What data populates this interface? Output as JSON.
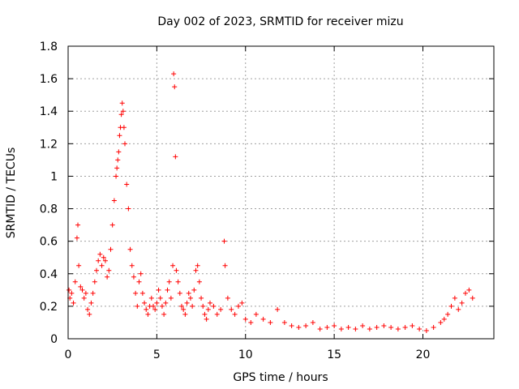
{
  "chart_data": {
    "type": "scatter",
    "title": "Day 002 of 2023, SRMTID for receiver mizu",
    "xlabel": "GPS time / hours",
    "ylabel": "SRMTID / TECUs",
    "xlim": [
      0,
      24
    ],
    "ylim": [
      0,
      1.8
    ],
    "xticks": [
      0,
      5,
      10,
      15,
      20
    ],
    "xtick_labels": [
      "0",
      "5",
      "10",
      "15",
      "20"
    ],
    "yticks": [
      0,
      0.2,
      0.4,
      0.6,
      0.8,
      1,
      1.2,
      1.4,
      1.6,
      1.8
    ],
    "ytick_labels": [
      "0",
      "0.2",
      "0.4",
      "0.6",
      "0.8",
      "1",
      "1.2",
      "1.4",
      "1.6",
      "1.8"
    ],
    "grid": true,
    "marker": "+",
    "color": "#ff0000",
    "series": [
      {
        "name": "SRMTID",
        "x": [
          0.05,
          0.1,
          0.2,
          0.3,
          0.4,
          0.5,
          0.55,
          0.6,
          0.7,
          0.8,
          0.9,
          1.0,
          1.1,
          1.2,
          1.3,
          1.4,
          1.5,
          1.6,
          1.7,
          1.8,
          1.9,
          2.0,
          2.1,
          2.2,
          2.3,
          2.4,
          2.5,
          2.6,
          2.7,
          2.75,
          2.8,
          2.85,
          2.9,
          2.95,
          3.0,
          3.05,
          3.1,
          3.15,
          3.2,
          3.3,
          3.4,
          3.5,
          3.6,
          3.7,
          3.8,
          3.9,
          4.0,
          4.1,
          4.2,
          4.3,
          4.4,
          4.5,
          4.6,
          4.7,
          4.8,
          4.9,
          5.0,
          5.1,
          5.2,
          5.3,
          5.4,
          5.5,
          5.6,
          5.7,
          5.8,
          5.9,
          5.95,
          6.0,
          6.05,
          6.1,
          6.2,
          6.3,
          6.4,
          6.5,
          6.6,
          6.7,
          6.8,
          6.9,
          7.0,
          7.1,
          7.2,
          7.3,
          7.4,
          7.5,
          7.6,
          7.7,
          7.8,
          7.9,
          8.0,
          8.2,
          8.4,
          8.6,
          8.8,
          8.85,
          9.0,
          9.2,
          9.4,
          9.6,
          9.8,
          10.0,
          10.3,
          10.6,
          11.0,
          11.4,
          11.8,
          12.2,
          12.6,
          13.0,
          13.4,
          13.8,
          14.2,
          14.6,
          15.0,
          15.4,
          15.8,
          16.2,
          16.6,
          17.0,
          17.4,
          17.8,
          18.2,
          18.6,
          19.0,
          19.4,
          19.8,
          20.2,
          20.6,
          21.0,
          21.2,
          21.4,
          21.6,
          21.8,
          22.0,
          22.2,
          22.4,
          22.6,
          22.8
        ],
        "y": [
          0.3,
          0.25,
          0.28,
          0.22,
          0.35,
          0.62,
          0.7,
          0.45,
          0.32,
          0.3,
          0.25,
          0.28,
          0.18,
          0.15,
          0.22,
          0.28,
          0.35,
          0.42,
          0.48,
          0.52,
          0.45,
          0.5,
          0.48,
          0.38,
          0.42,
          0.55,
          0.7,
          0.85,
          1.0,
          1.05,
          1.1,
          1.15,
          1.25,
          1.3,
          1.38,
          1.45,
          1.4,
          1.3,
          1.2,
          0.95,
          0.8,
          0.55,
          0.45,
          0.38,
          0.28,
          0.2,
          0.35,
          0.4,
          0.28,
          0.22,
          0.18,
          0.15,
          0.2,
          0.25,
          0.2,
          0.18,
          0.22,
          0.3,
          0.25,
          0.2,
          0.15,
          0.22,
          0.3,
          0.35,
          0.25,
          0.45,
          1.63,
          1.55,
          1.12,
          0.42,
          0.35,
          0.28,
          0.2,
          0.18,
          0.15,
          0.22,
          0.28,
          0.25,
          0.2,
          0.3,
          0.42,
          0.45,
          0.35,
          0.25,
          0.2,
          0.15,
          0.12,
          0.18,
          0.22,
          0.2,
          0.15,
          0.18,
          0.6,
          0.45,
          0.25,
          0.18,
          0.15,
          0.2,
          0.22,
          0.12,
          0.1,
          0.15,
          0.12,
          0.1,
          0.18,
          0.1,
          0.08,
          0.07,
          0.08,
          0.1,
          0.06,
          0.07,
          0.08,
          0.06,
          0.07,
          0.06,
          0.08,
          0.06,
          0.07,
          0.08,
          0.07,
          0.06,
          0.07,
          0.08,
          0.06,
          0.05,
          0.07,
          0.1,
          0.12,
          0.15,
          0.2,
          0.25,
          0.18,
          0.22,
          0.28,
          0.3,
          0.25
        ]
      }
    ]
  }
}
